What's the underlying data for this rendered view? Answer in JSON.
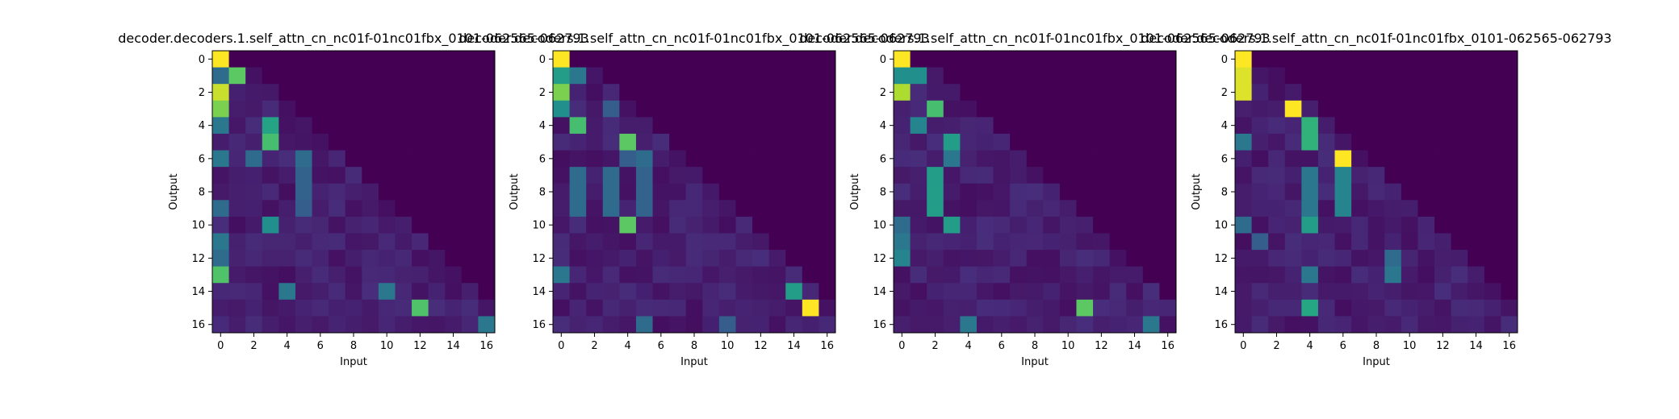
{
  "chart_data": [
    {
      "type": "heatmap",
      "title": "decoder.decoders.1.self_attn_cn_nc01f-01nc01fbx_0101-062565-062793",
      "xlabel": "Input",
      "ylabel": "Output",
      "size": 17,
      "xticks": [
        0,
        2,
        4,
        6,
        8,
        10,
        12,
        14,
        16
      ],
      "yticks": [
        0,
        2,
        4,
        6,
        8,
        10,
        12,
        14,
        16
      ],
      "vmin": 0,
      "vmax": 1,
      "colormap": "viridis",
      "strong": [
        [
          0,
          0,
          1.0
        ],
        [
          1,
          0,
          0.35
        ],
        [
          1,
          1,
          0.75
        ],
        [
          2,
          0,
          0.92
        ],
        [
          3,
          0,
          0.8
        ],
        [
          4,
          0,
          0.4
        ],
        [
          4,
          3,
          0.58
        ],
        [
          5,
          3,
          0.7
        ],
        [
          6,
          0,
          0.4
        ],
        [
          6,
          2,
          0.35
        ],
        [
          9,
          0,
          0.35
        ],
        [
          10,
          3,
          0.5
        ],
        [
          11,
          0,
          0.4
        ],
        [
          12,
          0,
          0.35
        ],
        [
          13,
          0,
          0.72
        ],
        [
          14,
          4,
          0.4
        ],
        [
          14,
          10,
          0.4
        ],
        [
          15,
          12,
          0.72
        ],
        [
          16,
          16,
          0.4
        ]
      ],
      "bands": [
        [
          6,
          5,
          0.35
        ],
        [
          7,
          5,
          0.32
        ],
        [
          8,
          5,
          0.32
        ],
        [
          9,
          5,
          0.3
        ]
      ]
    },
    {
      "type": "heatmap",
      "title": "decoder.decoders.1.self_attn_cn_nc01f-01nc01fbx_0101-062565-062793",
      "xlabel": "Input",
      "ylabel": "Output",
      "size": 17,
      "xticks": [
        0,
        2,
        4,
        6,
        8,
        10,
        12,
        14,
        16
      ],
      "yticks": [
        0,
        2,
        4,
        6,
        8,
        10,
        12,
        14,
        16
      ],
      "vmin": 0,
      "vmax": 1,
      "colormap": "viridis",
      "strong": [
        [
          0,
          0,
          1.0
        ],
        [
          1,
          0,
          0.55
        ],
        [
          1,
          1,
          0.4
        ],
        [
          2,
          0,
          0.8
        ],
        [
          3,
          0,
          0.5
        ],
        [
          3,
          3,
          0.3
        ],
        [
          4,
          1,
          0.7
        ],
        [
          5,
          4,
          0.75
        ],
        [
          6,
          4,
          0.3
        ],
        [
          6,
          5,
          0.35
        ],
        [
          10,
          4,
          0.75
        ],
        [
          13,
          0,
          0.4
        ],
        [
          14,
          14,
          0.55
        ],
        [
          15,
          15,
          1.0
        ],
        [
          16,
          5,
          0.35
        ],
        [
          16,
          10,
          0.3
        ]
      ],
      "bands": [
        [
          7,
          1,
          0.35
        ],
        [
          8,
          1,
          0.35
        ],
        [
          9,
          1,
          0.35
        ],
        [
          7,
          3,
          0.35
        ],
        [
          8,
          3,
          0.35
        ],
        [
          9,
          3,
          0.35
        ],
        [
          7,
          5,
          0.32
        ],
        [
          8,
          5,
          0.32
        ],
        [
          9,
          5,
          0.32
        ]
      ]
    },
    {
      "type": "heatmap",
      "title": "decoder.decoders.1.self_attn_cn_nc01f-01nc01fbx_0101-062565-062793",
      "xlabel": "Input",
      "ylabel": "Output",
      "size": 17,
      "xticks": [
        0,
        2,
        4,
        6,
        8,
        10,
        12,
        14,
        16
      ],
      "yticks": [
        0,
        2,
        4,
        6,
        8,
        10,
        12,
        14,
        16
      ],
      "vmin": 0,
      "vmax": 1,
      "colormap": "viridis",
      "strong": [
        [
          0,
          0,
          1.0
        ],
        [
          1,
          0,
          0.5
        ],
        [
          1,
          1,
          0.5
        ],
        [
          2,
          0,
          0.88
        ],
        [
          3,
          2,
          0.7
        ],
        [
          4,
          1,
          0.45
        ],
        [
          5,
          3,
          0.55
        ],
        [
          6,
          3,
          0.4
        ],
        [
          10,
          0,
          0.35
        ],
        [
          10,
          3,
          0.55
        ],
        [
          11,
          0,
          0.4
        ],
        [
          12,
          0,
          0.45
        ],
        [
          15,
          11,
          0.75
        ],
        [
          16,
          4,
          0.4
        ],
        [
          16,
          15,
          0.4
        ]
      ],
      "bands": [
        [
          7,
          2,
          0.55
        ],
        [
          8,
          2,
          0.55
        ],
        [
          9,
          2,
          0.55
        ]
      ]
    },
    {
      "type": "heatmap",
      "title": "decoder.decoders.1.self_attn_cn_nc01f-01nc01fbx_0101-062565-062793",
      "xlabel": "Input",
      "ylabel": "Output",
      "size": 17,
      "xticks": [
        0,
        2,
        4,
        6,
        8,
        10,
        12,
        14,
        16
      ],
      "yticks": [
        0,
        2,
        4,
        6,
        8,
        10,
        12,
        14,
        16
      ],
      "vmin": 0,
      "vmax": 1,
      "colormap": "viridis",
      "strong": [
        [
          0,
          0,
          1.0
        ],
        [
          1,
          0,
          0.95
        ],
        [
          2,
          0,
          0.95
        ],
        [
          3,
          3,
          1.0
        ],
        [
          4,
          4,
          0.65
        ],
        [
          5,
          0,
          0.4
        ],
        [
          5,
          4,
          0.65
        ],
        [
          6,
          6,
          1.0
        ],
        [
          10,
          0,
          0.35
        ],
        [
          10,
          4,
          0.55
        ],
        [
          11,
          1,
          0.3
        ],
        [
          12,
          9,
          0.35
        ],
        [
          13,
          4,
          0.4
        ],
        [
          13,
          9,
          0.4
        ],
        [
          15,
          4,
          0.6
        ]
      ],
      "bands": [
        [
          7,
          4,
          0.4
        ],
        [
          8,
          4,
          0.4
        ],
        [
          9,
          4,
          0.4
        ],
        [
          7,
          6,
          0.45
        ],
        [
          8,
          6,
          0.45
        ],
        [
          9,
          6,
          0.45
        ]
      ]
    }
  ]
}
